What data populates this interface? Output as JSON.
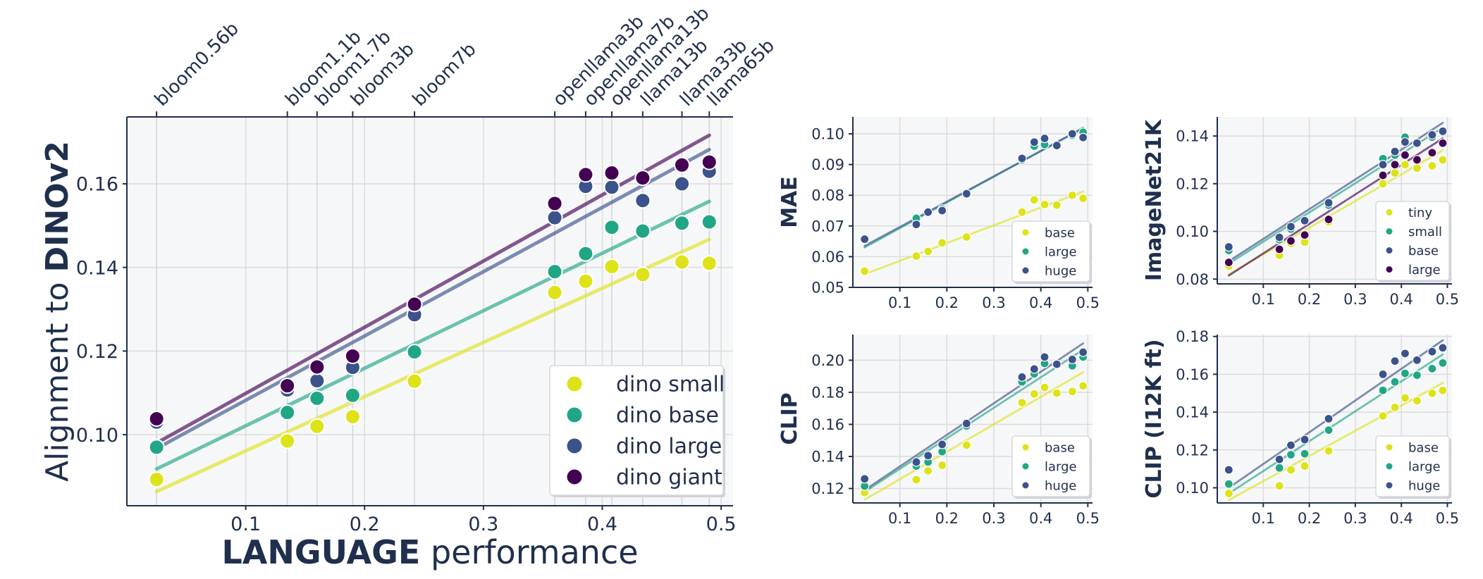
{
  "colors": {
    "tiny": "#dde318",
    "small": "#dde318",
    "base": "#21a685",
    "large": "#3b528b",
    "giant": "#440154",
    "axis": "#1f2f4d",
    "grid": "#dcdcdc",
    "plotbg": "#f6f7f8"
  },
  "chart_data": [
    {
      "type": "scatter",
      "id": "main",
      "xlabel_bold": "LANGUAGE",
      "xlabel_rest": " performance",
      "ylabel_prefix": "Alignment to ",
      "ylabel_bold": "DINOv2",
      "xlim": [
        0.0,
        0.51
      ],
      "ylim": [
        0.083,
        0.176
      ],
      "xticks": [
        0.1,
        0.2,
        0.3,
        0.4,
        0.5
      ],
      "xtick_labels": [
        "0.1",
        "0.2",
        "0.3",
        "0.4",
        "0.5"
      ],
      "yticks": [
        0.1,
        0.12,
        0.14,
        0.16
      ],
      "ytick_labels": [
        "0.10",
        "0.12",
        "0.14",
        "0.16"
      ],
      "top_axis": {
        "models": [
          "bloom0.56b",
          "bloom1.1b",
          "bloom1.7b",
          "bloom3b",
          "bloom7b",
          "openllama3b",
          "openllama7b",
          "openllama13b",
          "llama13b",
          "llama33b",
          "llama65b"
        ],
        "x": [
          0.025,
          0.135,
          0.16,
          0.19,
          0.242,
          0.36,
          0.386,
          0.408,
          0.434,
          0.467,
          0.49
        ]
      },
      "legend_position": "bottom-right",
      "series": [
        {
          "name": "dino small",
          "color_key": "small",
          "y": [
            0.0893,
            0.0985,
            0.102,
            0.1043,
            0.1128,
            0.134,
            0.1367,
            0.1402,
            0.1383,
            0.1413,
            0.141
          ],
          "fit": [
            0.0864,
            0.1467
          ]
        },
        {
          "name": "dino base",
          "color_key": "base",
          "y": [
            0.097,
            0.1053,
            0.1087,
            0.1094,
            0.1198,
            0.139,
            0.1433,
            0.1496,
            0.1487,
            0.1506,
            0.1509
          ],
          "fit": [
            0.0918,
            0.1558
          ]
        },
        {
          "name": "dino large",
          "color_key": "large",
          "y": [
            0.103,
            0.1107,
            0.1129,
            0.1161,
            0.1287,
            0.1519,
            0.1594,
            0.1592,
            0.156,
            0.16,
            0.163
          ],
          "fit": [
            0.0967,
            0.1682
          ]
        },
        {
          "name": "dino giant",
          "color_key": "giant",
          "y": [
            0.1038,
            0.1117,
            0.1162,
            0.1188,
            0.1312,
            0.1553,
            0.1622,
            0.1626,
            0.1614,
            0.1645,
            0.1652
          ],
          "fit": [
            0.098,
            0.1716
          ]
        }
      ]
    },
    {
      "type": "scatter",
      "id": "mae",
      "ylabel": "MAE",
      "xlim": [
        0.0,
        0.51
      ],
      "ylim": [
        0.05,
        0.1055
      ],
      "xticks": [
        0.1,
        0.2,
        0.3,
        0.4,
        0.5
      ],
      "xtick_labels": [
        "0.1",
        "0.2",
        "0.3",
        "0.4",
        "0.5"
      ],
      "yticks": [
        0.05,
        0.06,
        0.07,
        0.08,
        0.09,
        0.1
      ],
      "ytick_labels": [
        "0.05",
        "0.06",
        "0.07",
        "0.08",
        "0.09",
        "0.10"
      ],
      "x": [
        0.025,
        0.135,
        0.16,
        0.19,
        0.242,
        0.36,
        0.386,
        0.408,
        0.434,
        0.467,
        0.49
      ],
      "legend_position": "bottom-right",
      "series": [
        {
          "name": "base",
          "color_key": "small",
          "y": [
            0.0553,
            0.0602,
            0.0617,
            0.0645,
            0.0664,
            0.0745,
            0.0785,
            0.077,
            0.0768,
            0.08,
            0.079
          ],
          "fit": [
            0.0543,
            0.0812
          ]
        },
        {
          "name": "large",
          "color_key": "base",
          "y": [
            0.0655,
            0.0725,
            0.0745,
            0.0755,
            0.0805,
            0.0915,
            0.096,
            0.0965,
            0.096,
            0.0995,
            0.1005
          ],
          "fit": [
            0.063,
            0.102
          ]
        },
        {
          "name": "huge",
          "color_key": "large",
          "y": [
            0.0657,
            0.0705,
            0.0745,
            0.075,
            0.0805,
            0.092,
            0.0973,
            0.0985,
            0.0962,
            0.1,
            0.0988
          ],
          "fit": [
            0.0635,
            0.1018
          ]
        }
      ]
    },
    {
      "type": "scatter",
      "id": "in21k",
      "ylabel": "ImageNet21K",
      "xlim": [
        0.0,
        0.51
      ],
      "ylim": [
        0.078,
        0.148
      ],
      "xticks": [
        0.1,
        0.2,
        0.3,
        0.4,
        0.5
      ],
      "xtick_labels": [
        "0.1",
        "0.2",
        "0.3",
        "0.4",
        "0.5"
      ],
      "yticks": [
        0.08,
        0.1,
        0.12,
        0.14
      ],
      "ytick_labels": [
        "0.08",
        "0.10",
        "0.12",
        "0.14"
      ],
      "x": [
        0.025,
        0.135,
        0.16,
        0.19,
        0.242,
        0.36,
        0.386,
        0.408,
        0.434,
        0.467,
        0.49
      ],
      "legend_position": "bottom-right",
      "series": [
        {
          "name": "tiny",
          "color_key": "tiny",
          "y": [
            0.0855,
            0.09,
            0.095,
            0.0955,
            0.104,
            0.12,
            0.1245,
            0.128,
            0.1265,
            0.1275,
            0.13
          ],
          "fit": [
            0.082,
            0.134
          ]
        },
        {
          "name": "small",
          "color_key": "base",
          "y": [
            0.092,
            0.0965,
            0.101,
            0.1045,
            0.111,
            0.1305,
            0.132,
            0.1395,
            0.137,
            0.1395,
            0.1415
          ],
          "fit": [
            0.0865,
            0.1435
          ]
        },
        {
          "name": "base",
          "color_key": "large",
          "y": [
            0.0935,
            0.0975,
            0.102,
            0.1045,
            0.112,
            0.128,
            0.1335,
            0.1375,
            0.137,
            0.1405,
            0.142
          ],
          "fit": [
            0.0875,
            0.1455
          ]
        },
        {
          "name": "large",
          "color_key": "giant",
          "y": [
            0.087,
            0.0925,
            0.096,
            0.0985,
            0.105,
            0.1235,
            0.128,
            0.132,
            0.13,
            0.133,
            0.137
          ],
          "fit": [
            0.0815,
            0.139
          ]
        }
      ]
    },
    {
      "type": "scatter",
      "id": "clip",
      "ylabel": "CLIP",
      "xlim": [
        0.0,
        0.51
      ],
      "ylim": [
        0.111,
        0.216
      ],
      "xticks": [
        0.1,
        0.2,
        0.3,
        0.4,
        0.5
      ],
      "xtick_labels": [
        "0.1",
        "0.2",
        "0.3",
        "0.4",
        "0.5"
      ],
      "yticks": [
        0.12,
        0.14,
        0.16,
        0.18,
        0.2
      ],
      "ytick_labels": [
        "0.12",
        "0.14",
        "0.16",
        "0.18",
        "0.20"
      ],
      "x": [
        0.025,
        0.135,
        0.16,
        0.19,
        0.242,
        0.36,
        0.386,
        0.408,
        0.434,
        0.467,
        0.49
      ],
      "legend_position": "bottom-right",
      "series": [
        {
          "name": "base",
          "color_key": "small",
          "y": [
            0.1175,
            0.1255,
            0.131,
            0.1345,
            0.147,
            0.1735,
            0.179,
            0.183,
            0.1795,
            0.1805,
            0.184
          ],
          "fit": [
            0.113,
            0.1925
          ]
        },
        {
          "name": "large",
          "color_key": "base",
          "y": [
            0.1215,
            0.134,
            0.1365,
            0.143,
            0.159,
            0.1865,
            0.1915,
            0.198,
            0.1975,
            0.1965,
            0.202
          ],
          "fit": [
            0.118,
            0.2065
          ]
        },
        {
          "name": "huge",
          "color_key": "large",
          "y": [
            0.126,
            0.1365,
            0.1405,
            0.1475,
            0.1605,
            0.1895,
            0.1945,
            0.202,
            0.1975,
            0.2005,
            0.205
          ],
          "fit": [
            0.119,
            0.2105
          ]
        }
      ]
    },
    {
      "type": "scatter",
      "id": "clip12k",
      "ylabel": "CLIP (I12K ft)",
      "xlim": [
        0.0,
        0.51
      ],
      "ylim": [
        0.092,
        0.181
      ],
      "xticks": [
        0.1,
        0.2,
        0.3,
        0.4,
        0.5
      ],
      "xtick_labels": [
        "0.1",
        "0.2",
        "0.3",
        "0.4",
        "0.5"
      ],
      "yticks": [
        0.1,
        0.12,
        0.14,
        0.16,
        0.18
      ],
      "ytick_labels": [
        "0.10",
        "0.12",
        "0.14",
        "0.16",
        "0.18"
      ],
      "x": [
        0.025,
        0.135,
        0.16,
        0.19,
        0.242,
        0.36,
        0.386,
        0.408,
        0.434,
        0.467,
        0.49
      ],
      "legend_position": "bottom-right",
      "series": [
        {
          "name": "base",
          "color_key": "small",
          "y": [
            0.097,
            0.101,
            0.1095,
            0.1115,
            0.1195,
            0.138,
            0.1425,
            0.1475,
            0.146,
            0.15,
            0.1515
          ],
          "fit": [
            0.0935,
            0.1555
          ]
        },
        {
          "name": "large",
          "color_key": "base",
          "y": [
            0.102,
            0.1105,
            0.1175,
            0.118,
            0.1305,
            0.1515,
            0.156,
            0.1605,
            0.1595,
            0.163,
            0.166
          ],
          "fit": [
            0.097,
            0.1705
          ]
        },
        {
          "name": "huge",
          "color_key": "large",
          "y": [
            0.1095,
            0.115,
            0.1225,
            0.1255,
            0.1365,
            0.16,
            0.167,
            0.171,
            0.1675,
            0.172,
            0.174
          ],
          "fit": [
            0.1,
            0.178
          ]
        }
      ]
    }
  ]
}
